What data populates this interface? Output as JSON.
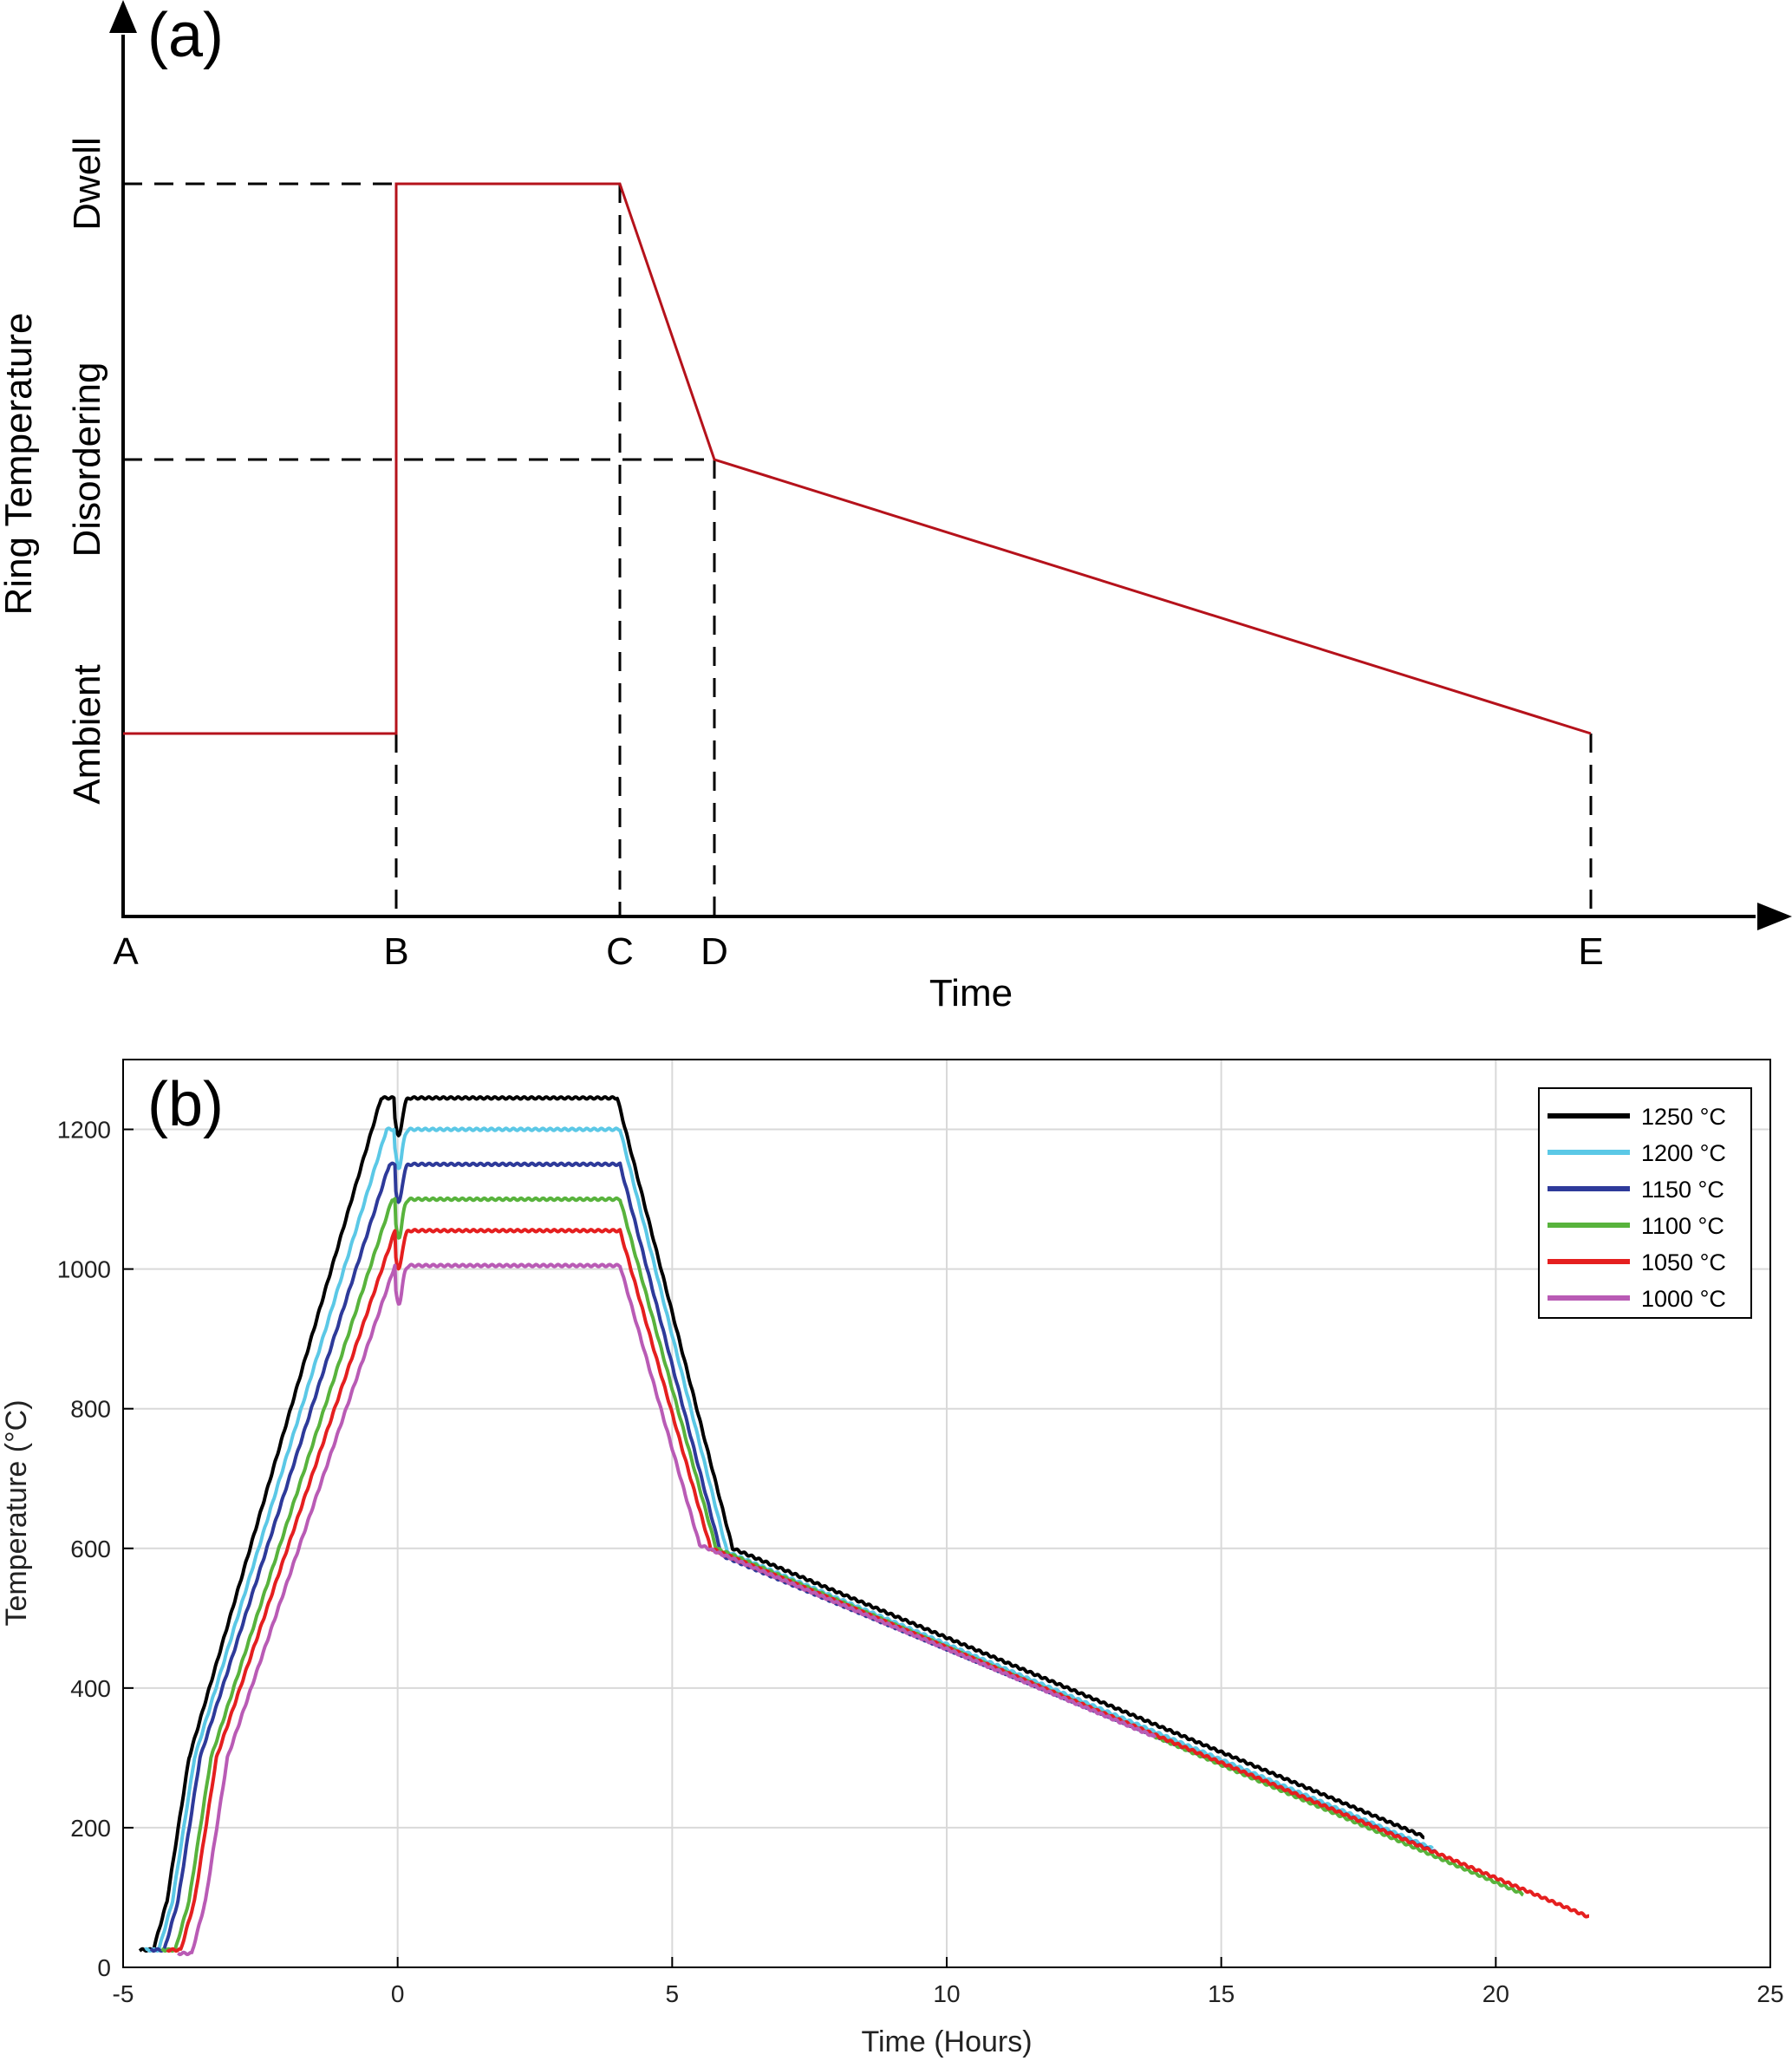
{
  "chart_data": [
    {
      "panel_label": "(a)",
      "type": "line",
      "xlabel": "Time",
      "ylabel": "Ring Temperature",
      "x_ticks": [
        "A",
        "B",
        "C",
        "D",
        "E"
      ],
      "y_levels": [
        "Ambient",
        "Disordering",
        "Dwell"
      ],
      "x": [
        "A",
        "B",
        "B",
        "C",
        "D",
        "E"
      ],
      "y": [
        "Ambient",
        "Ambient",
        "Dwell",
        "Dwell",
        "Disordering",
        "Ambient"
      ],
      "grid": false,
      "colors": {
        "line": "#b5121b",
        "axis": "#000000",
        "guides": "#000000"
      }
    },
    {
      "panel_label": "(b)",
      "type": "line",
      "xlabel": "Time (Hours)",
      "ylabel": "Temperature (°C)",
      "xlim": [
        -5,
        25
      ],
      "ylim": [
        0,
        1300
      ],
      "x_ticks": [
        -5,
        0,
        5,
        10,
        15,
        20,
        25
      ],
      "y_ticks": [
        0,
        200,
        400,
        600,
        800,
        1000,
        1200
      ],
      "grid": true,
      "legend_position": "top-right",
      "series": [
        {
          "name": "1250 °C",
          "color": "#000000",
          "start": -4.7,
          "end": 18.7,
          "x": [
            -4.7,
            -4.45,
            -4.2,
            -3.8,
            -0.3,
            0,
            4,
            6.1,
            18.7
          ],
          "y": [
            25,
            25,
            95,
            300,
            1245,
            1245,
            1245,
            600,
            187
          ]
        },
        {
          "name": "1200 °C",
          "color": "#5bc8e6",
          "start": -4.6,
          "end": 18.85,
          "x": [
            -4.6,
            -4.35,
            -4.1,
            -3.7,
            -0.2,
            0,
            4.05,
            6.0,
            18.85
          ],
          "y": [
            25,
            25,
            95,
            300,
            1200,
            1200,
            1200,
            595,
            170
          ]
        },
        {
          "name": "1150 °C",
          "color": "#2e3a9a",
          "start": -4.5,
          "end": 18.9,
          "x": [
            -4.5,
            -4.25,
            -4.0,
            -3.6,
            -0.15,
            0,
            4.05,
            5.9,
            18.9
          ],
          "y": [
            25,
            25,
            95,
            300,
            1150,
            1150,
            1150,
            590,
            165
          ]
        },
        {
          "name": "1100 °C",
          "color": "#58b33c",
          "start": -4.3,
          "end": 20.5,
          "x": [
            -4.3,
            -4.05,
            -3.8,
            -3.4,
            -0.1,
            0,
            4.05,
            5.8,
            20.5
          ],
          "y": [
            25,
            25,
            95,
            300,
            1100,
            1100,
            1100,
            600,
            105
          ]
        },
        {
          "name": "1050 °C",
          "color": "#e51f1f",
          "start": -4.2,
          "end": 21.7,
          "x": [
            -4.2,
            -3.95,
            -3.7,
            -3.3,
            -0.05,
            0,
            4.05,
            5.7,
            21.7
          ],
          "y": [
            25,
            25,
            95,
            300,
            1055,
            1055,
            1055,
            600,
            72
          ]
        },
        {
          "name": "1000 °C",
          "color": "#b95bb5",
          "start": -4.0,
          "end": 13.8,
          "x": [
            -4.0,
            -3.75,
            -3.5,
            -3.1,
            -0.05,
            0,
            4.05,
            5.5,
            13.8
          ],
          "y": [
            20,
            20,
            95,
            300,
            1005,
            1005,
            1005,
            605,
            330
          ]
        }
      ]
    }
  ]
}
